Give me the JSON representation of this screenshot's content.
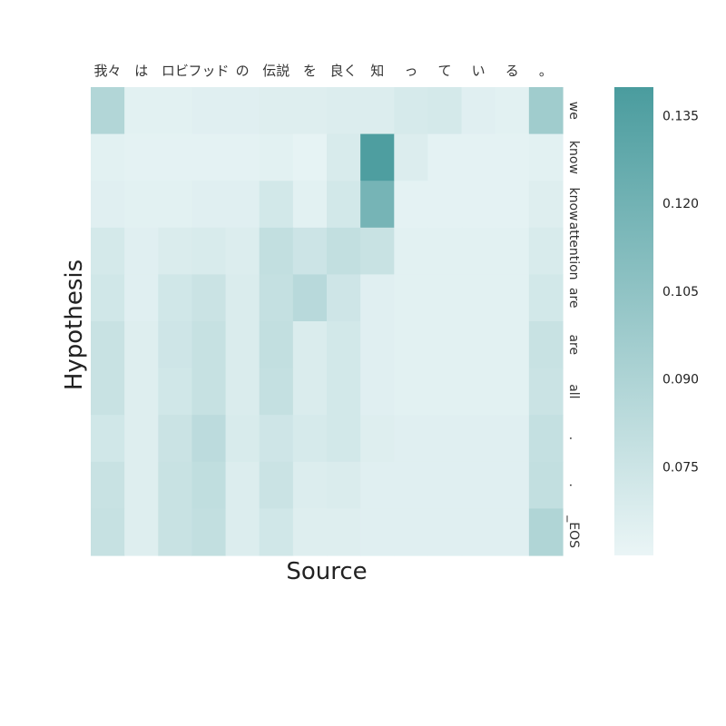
{
  "chart_data": {
    "type": "heatmap",
    "xlabel": "Source",
    "ylabel": "Hypothesis",
    "x_tick_labels": [
      "我々",
      "は",
      "ロビ",
      "フッド",
      "の",
      "伝説",
      "を",
      "良く",
      "知",
      "っ",
      "て",
      "い",
      "る",
      "。"
    ],
    "y_tick_labels": [
      "we",
      "know",
      "know",
      "attention",
      "are",
      "are",
      "all",
      ".",
      ".",
      "_EOS"
    ],
    "colorbar": {
      "ticks": [
        0.075,
        0.09,
        0.105,
        0.12,
        0.135
      ],
      "tick_labels": [
        "0.075",
        "0.090",
        "0.105",
        "0.120",
        "0.135"
      ],
      "range": [
        0.06,
        0.14
      ]
    },
    "color_low": "#eaf5f6",
    "color_high": "#4a9c9e",
    "values": [
      [
        0.088,
        0.064,
        0.064,
        0.065,
        0.065,
        0.066,
        0.066,
        0.067,
        0.067,
        0.07,
        0.071,
        0.065,
        0.064,
        0.097
      ],
      [
        0.064,
        0.063,
        0.063,
        0.063,
        0.063,
        0.064,
        0.062,
        0.069,
        0.138,
        0.067,
        0.063,
        0.063,
        0.063,
        0.064
      ],
      [
        0.065,
        0.064,
        0.064,
        0.065,
        0.065,
        0.072,
        0.064,
        0.072,
        0.118,
        0.063,
        0.063,
        0.063,
        0.063,
        0.066
      ],
      [
        0.071,
        0.065,
        0.068,
        0.069,
        0.067,
        0.08,
        0.075,
        0.08,
        0.077,
        0.064,
        0.064,
        0.064,
        0.064,
        0.069
      ],
      [
        0.073,
        0.065,
        0.073,
        0.076,
        0.068,
        0.079,
        0.085,
        0.074,
        0.065,
        0.064,
        0.064,
        0.064,
        0.064,
        0.072
      ],
      [
        0.077,
        0.066,
        0.074,
        0.078,
        0.068,
        0.08,
        0.068,
        0.072,
        0.065,
        0.064,
        0.064,
        0.064,
        0.064,
        0.077
      ],
      [
        0.077,
        0.066,
        0.073,
        0.078,
        0.068,
        0.079,
        0.068,
        0.072,
        0.065,
        0.064,
        0.064,
        0.064,
        0.064,
        0.076
      ],
      [
        0.073,
        0.066,
        0.076,
        0.083,
        0.069,
        0.074,
        0.07,
        0.072,
        0.066,
        0.065,
        0.065,
        0.065,
        0.065,
        0.079
      ],
      [
        0.077,
        0.066,
        0.077,
        0.081,
        0.067,
        0.076,
        0.067,
        0.068,
        0.065,
        0.065,
        0.065,
        0.065,
        0.065,
        0.08
      ],
      [
        0.078,
        0.066,
        0.077,
        0.08,
        0.067,
        0.073,
        0.066,
        0.066,
        0.065,
        0.065,
        0.065,
        0.065,
        0.065,
        0.089
      ]
    ]
  }
}
